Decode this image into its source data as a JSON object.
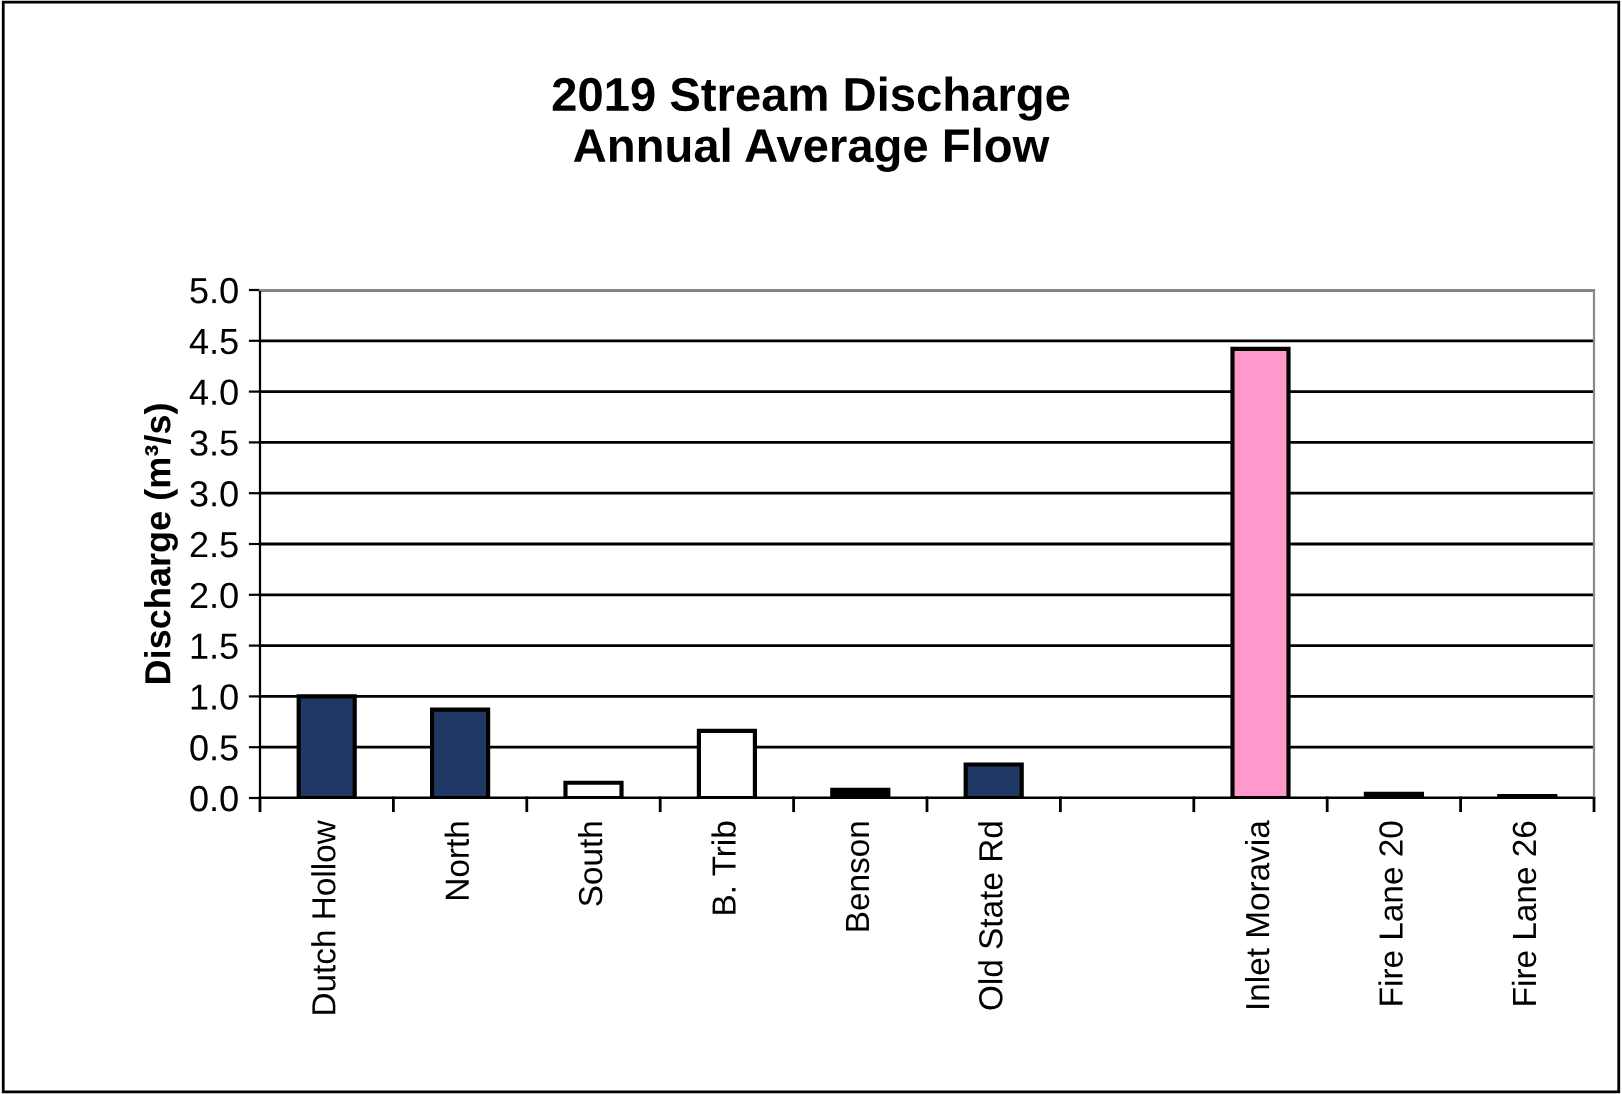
{
  "chart_data": {
    "type": "bar",
    "title": "2019 Stream Discharge\nAnnual Average Flow",
    "ylabel": "Discharge (m³/s)",
    "categories": [
      "Dutch Hollow",
      "North",
      "South",
      "B. Trib",
      "Benson",
      "Old State Rd",
      null,
      "Inlet Moravia",
      "Fire Lane 20",
      "Fire Lane 26"
    ],
    "values": [
      1.0,
      0.87,
      0.15,
      0.66,
      0.08,
      0.33,
      null,
      4.42,
      0.04,
      0.02
    ],
    "colors": [
      "#1f3864",
      "#1f3864",
      "#ffffff",
      "#ffffff",
      "#000000",
      "#1f3864",
      null,
      "#ff99cc",
      "#000000",
      "#000000"
    ],
    "ylim": [
      0,
      5
    ],
    "yticks": [
      {
        "value": 0,
        "label": "0.0"
      },
      {
        "value": 0.5,
        "label": "0.5"
      },
      {
        "value": 1,
        "label": "1.0"
      },
      {
        "value": 1.5,
        "label": "1.5"
      },
      {
        "value": 2,
        "label": "2.0"
      },
      {
        "value": 2.5,
        "label": "2.5"
      },
      {
        "value": 3,
        "label": "3.0"
      },
      {
        "value": 3.5,
        "label": "3.5"
      },
      {
        "value": 4,
        "label": "4.0"
      },
      {
        "value": 4.5,
        "label": "4.5"
      },
      {
        "value": 5,
        "label": "5.0"
      }
    ],
    "grid": "y",
    "legend": false
  }
}
